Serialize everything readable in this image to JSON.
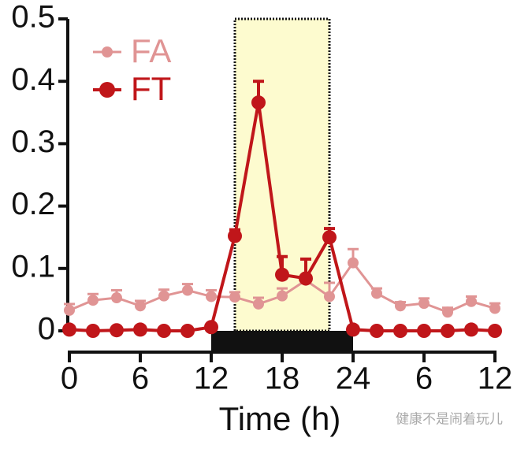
{
  "chart_data": {
    "type": "line",
    "x_label": "Time (h)",
    "x": [
      0,
      2,
      4,
      6,
      8,
      10,
      12,
      14,
      16,
      18,
      20,
      22,
      24,
      26,
      28,
      30,
      32,
      34,
      36
    ],
    "series": [
      {
        "name": "FA",
        "color": "#e09494",
        "values": [
          0.033,
          0.049,
          0.053,
          0.04,
          0.056,
          0.065,
          0.055,
          0.054,
          0.043,
          0.056,
          0.081,
          0.055,
          0.109,
          0.06,
          0.04,
          0.044,
          0.03,
          0.047,
          0.036
        ],
        "errors": [
          0.01,
          0.01,
          0.012,
          0.008,
          0.01,
          0.01,
          0.01,
          0.008,
          0.01,
          0.012,
          0.008,
          0.022,
          0.022,
          0.008,
          0.006,
          0.008,
          0.007,
          0.008,
          0.008
        ]
      },
      {
        "name": "FT",
        "color": "#c0161a",
        "values": [
          0.002,
          0.0,
          0.001,
          0.002,
          0.0,
          0.0,
          0.006,
          0.152,
          0.366,
          0.09,
          0.084,
          0.15,
          0.002,
          0.0,
          0.0,
          0.0,
          0.0,
          0.002,
          0.0
        ],
        "errors": [
          0,
          0,
          0,
          0,
          0,
          0,
          0,
          0.01,
          0.034,
          0.029,
          0.031,
          0.014,
          0,
          0,
          0,
          0,
          0,
          0,
          0
        ]
      }
    ],
    "xlim": [
      0,
      36
    ],
    "xticks": [
      0,
      6,
      12,
      18,
      24,
      {
        "value": 30,
        "label": "6"
      },
      {
        "value": 36,
        "label": "12"
      }
    ],
    "ylim": [
      0,
      0.5
    ],
    "yticks": [
      0,
      0.1,
      0.2,
      0.3,
      0.4,
      0.5
    ],
    "shaded_region": [
      14,
      22
    ],
    "shaded_color": "#fdfbcf",
    "dark_period": [
      12,
      24
    ],
    "watermark": "健康不是闹着玩儿"
  }
}
